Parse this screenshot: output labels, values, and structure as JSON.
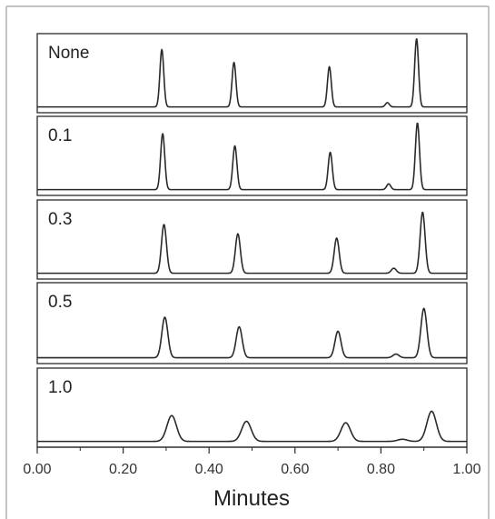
{
  "chart_data": {
    "type": "line",
    "xlabel": "Minutes",
    "xlim": [
      0.0,
      1.0
    ],
    "x_ticks": [
      "0.00",
      "0.20",
      "0.40",
      "0.60",
      "0.80",
      "1.00"
    ],
    "grid": false,
    "panels": [
      {
        "label": "None",
        "baseline": 0.03,
        "peaks": [
          {
            "x": 0.29,
            "height": 0.8,
            "width": 0.0045
          },
          {
            "x": 0.458,
            "height": 0.62,
            "width": 0.0045
          },
          {
            "x": 0.68,
            "height": 0.56,
            "width": 0.0045
          },
          {
            "x": 0.815,
            "height": 0.06,
            "width": 0.0045
          },
          {
            "x": 0.883,
            "height": 0.95,
            "width": 0.0045
          }
        ]
      },
      {
        "label": "0.1",
        "baseline": 0.03,
        "peaks": [
          {
            "x": 0.292,
            "height": 0.78,
            "width": 0.0048
          },
          {
            "x": 0.46,
            "height": 0.61,
            "width": 0.0048
          },
          {
            "x": 0.682,
            "height": 0.52,
            "width": 0.0048
          },
          {
            "x": 0.818,
            "height": 0.08,
            "width": 0.0048
          },
          {
            "x": 0.885,
            "height": 0.93,
            "width": 0.0048
          }
        ]
      },
      {
        "label": "0.3",
        "baseline": 0.03,
        "peaks": [
          {
            "x": 0.295,
            "height": 0.68,
            "width": 0.0058
          },
          {
            "x": 0.467,
            "height": 0.55,
            "width": 0.0058
          },
          {
            "x": 0.697,
            "height": 0.49,
            "width": 0.0058
          },
          {
            "x": 0.83,
            "height": 0.07,
            "width": 0.0058
          },
          {
            "x": 0.897,
            "height": 0.85,
            "width": 0.0058
          }
        ]
      },
      {
        "label": "0.5",
        "baseline": 0.03,
        "peaks": [
          {
            "x": 0.297,
            "height": 0.55,
            "width": 0.007
          },
          {
            "x": 0.47,
            "height": 0.42,
            "width": 0.007
          },
          {
            "x": 0.7,
            "height": 0.36,
            "width": 0.007
          },
          {
            "x": 0.835,
            "height": 0.05,
            "width": 0.007
          },
          {
            "x": 0.9,
            "height": 0.67,
            "width": 0.007
          }
        ]
      },
      {
        "label": "1.0",
        "baseline": 0.03,
        "peaks": [
          {
            "x": 0.313,
            "height": 0.36,
            "width": 0.011
          },
          {
            "x": 0.487,
            "height": 0.28,
            "width": 0.011
          },
          {
            "x": 0.718,
            "height": 0.26,
            "width": 0.011
          },
          {
            "x": 0.85,
            "height": 0.03,
            "width": 0.011
          },
          {
            "x": 0.918,
            "height": 0.42,
            "width": 0.011
          }
        ]
      }
    ]
  }
}
